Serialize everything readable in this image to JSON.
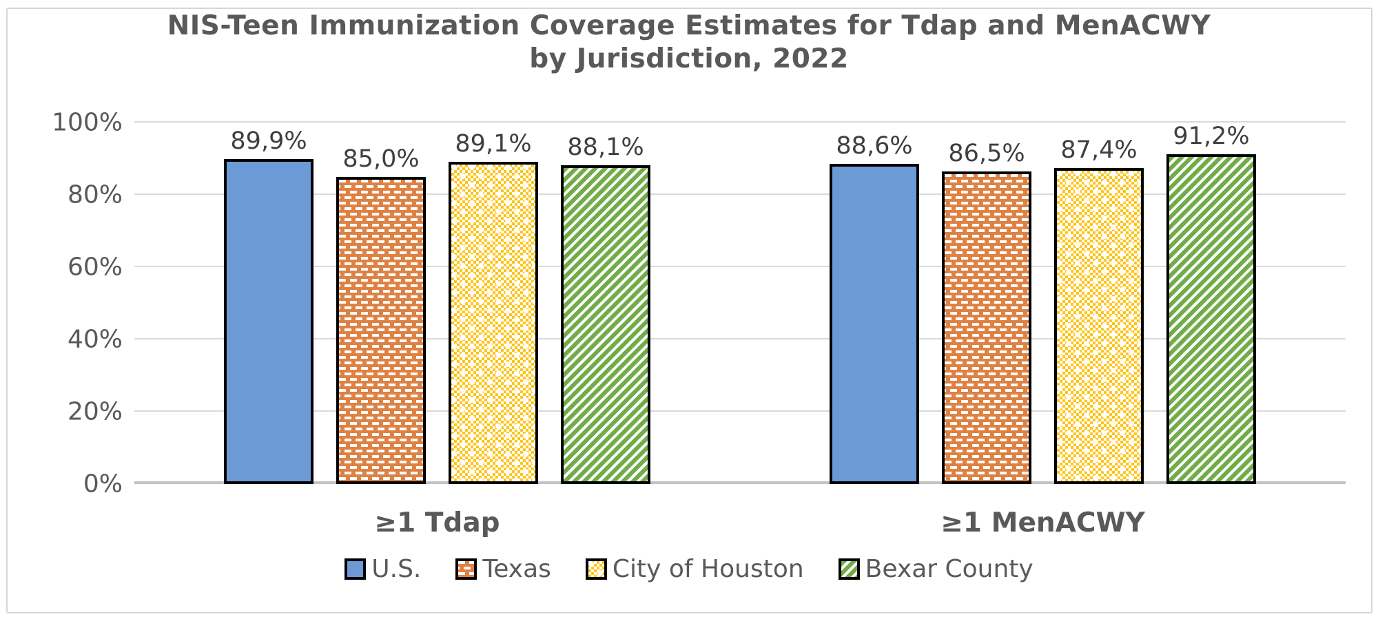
{
  "title": {
    "line1": "NIS-Teen Immunization Coverage Estimates for Tdap and MenACWY",
    "line2": "by Jurisdiction, 2022"
  },
  "chart_data": {
    "type": "bar",
    "categories": [
      "≥1 Tdap",
      "≥1 MenACWY"
    ],
    "series": [
      {
        "name": "U.S.",
        "values": [
          89.9,
          88.6
        ],
        "labels": [
          "89,9%",
          "88,6%"
        ],
        "color": "#6C9AD6",
        "pattern": "solid"
      },
      {
        "name": "Texas",
        "values": [
          85.0,
          86.5
        ],
        "labels": [
          "85,0%",
          "86,5%"
        ],
        "color": "#DE8244",
        "pattern": "dashed-brick"
      },
      {
        "name": "City of Houston",
        "values": [
          89.1,
          87.4
        ],
        "labels": [
          "89,1%",
          "87,4%"
        ],
        "color": "#FFC419",
        "pattern": "checker"
      },
      {
        "name": "Bexar County",
        "values": [
          88.1,
          91.2
        ],
        "labels": [
          "88,1%",
          "91,2%"
        ],
        "color": "#72AC49",
        "pattern": "diagonal-stripe"
      }
    ],
    "xlabel": "",
    "ylabel": "",
    "ylim": [
      0,
      100
    ],
    "y_ticks": [
      "0%",
      "20%",
      "40%",
      "60%",
      "80%",
      "100%"
    ],
    "grid": true,
    "legend_position": "bottom",
    "bar_outline_color": "#000000",
    "gridline_color": "#D9D9D9",
    "text_color": "#595959",
    "data_label_color": "#3F3F3F",
    "frame_border_color": "#D7D7D7",
    "background_color": "#FFFFFF"
  }
}
